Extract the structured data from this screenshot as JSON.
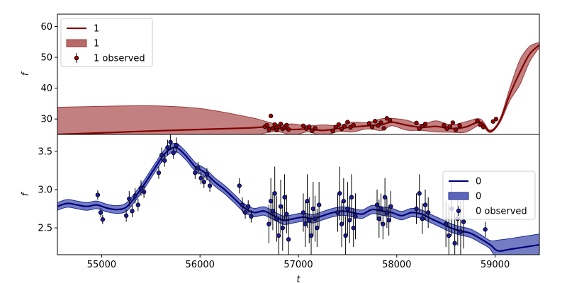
{
  "chart_data": [
    {
      "type": "line",
      "panel": "top",
      "xlabel": "",
      "ylabel": "f",
      "xlim": [
        54550,
        59450
      ],
      "ylim": [
        25,
        64
      ],
      "yticks": [
        30,
        40,
        50,
        60
      ],
      "grid": false,
      "legend_position": "top-left",
      "colors": {
        "line": "#800000",
        "band": "#b86a6a",
        "point": "#a00000"
      },
      "legend": [
        {
          "kind": "line",
          "label": "1"
        },
        {
          "kind": "band",
          "label": "1"
        },
        {
          "kind": "errorbar",
          "label": "1 observed"
        }
      ],
      "series": [
        {
          "name": "1",
          "kind": "mean",
          "x": [
            54550,
            55000,
            55500,
            56000,
            56500,
            56650,
            56800,
            56950,
            57100,
            57250,
            57400,
            57550,
            57700,
            57850,
            57950,
            58100,
            58250,
            58400,
            58550,
            58700,
            58850,
            58950,
            59050,
            59150,
            59250,
            59350,
            59450
          ],
          "y": [
            25.0,
            25.5,
            26.1,
            26.6,
            27.1,
            27.4,
            27.0,
            26.6,
            26.8,
            26.3,
            26.9,
            27.4,
            27.8,
            28.2,
            29.0,
            28.0,
            27.3,
            27.6,
            26.9,
            27.4,
            29.0,
            26.0,
            29.5,
            38.0,
            45.0,
            51.0,
            54.0
          ],
          "band_halfwidth": [
            8.8,
            8.6,
            8.2,
            6.8,
            3.5,
            2.0,
            1.2,
            1.8,
            1.0,
            1.8,
            1.0,
            1.6,
            1.0,
            1.9,
            1.2,
            1.6,
            1.0,
            1.8,
            1.2,
            1.7,
            1.0,
            0.4,
            0.6,
            2.0,
            4.0,
            2.5,
            0.8
          ]
        },
        {
          "name": "1 observed",
          "kind": "observed",
          "x": [
            56660,
            56680,
            56700,
            56720,
            56740,
            56760,
            56780,
            56800,
            56820,
            56840,
            56860,
            56880,
            56900,
            57050,
            57080,
            57110,
            57140,
            57170,
            57350,
            57380,
            57410,
            57440,
            57470,
            57500,
            57530,
            57560,
            57720,
            57750,
            57780,
            57810,
            57840,
            57870,
            57900,
            57930,
            58200,
            58230,
            58260,
            58290,
            58480,
            58510,
            58540,
            58570,
            58600,
            58640,
            58820,
            58850,
            58880,
            58980,
            59010
          ],
          "y": [
            27.5,
            28.0,
            26.5,
            31.0,
            27.0,
            28.2,
            26.4,
            27.6,
            28.4,
            26.8,
            27.3,
            28.0,
            26.6,
            27.8,
            26.9,
            27.5,
            26.2,
            27.0,
            26.1,
            27.4,
            28.2,
            26.8,
            27.6,
            29.0,
            27.3,
            28.0,
            28.6,
            27.4,
            29.3,
            27.9,
            28.8,
            27.0,
            30.2,
            29.6,
            28.7,
            26.9,
            27.7,
            28.4,
            28.0,
            26.9,
            27.6,
            28.8,
            26.5,
            27.9,
            29.4,
            28.1,
            27.4,
            29.2,
            30.0
          ]
        }
      ]
    },
    {
      "type": "line",
      "panel": "bottom",
      "xlabel": "t",
      "ylabel": "f",
      "xlim": [
        54550,
        59450
      ],
      "ylim": [
        2.15,
        3.72
      ],
      "xticks": [
        55000,
        56000,
        57000,
        58000,
        59000
      ],
      "yticks": [
        2.5,
        3.0,
        3.5
      ],
      "grid": false,
      "legend_position": "center-right",
      "colors": {
        "line": "#00007a",
        "band": "#5c66b8",
        "point": "#1a1aa0"
      },
      "legend": [
        {
          "kind": "line",
          "label": "0"
        },
        {
          "kind": "band",
          "label": "0"
        },
        {
          "kind": "errorbar",
          "label": "0 observed"
        }
      ],
      "series": [
        {
          "name": "0",
          "kind": "mean",
          "x": [
            54550,
            54650,
            54750,
            54850,
            54950,
            55050,
            55150,
            55250,
            55350,
            55450,
            55550,
            55650,
            55750,
            55850,
            55950,
            56050,
            56150,
            56250,
            56350,
            56450,
            56550,
            56650,
            56750,
            56850,
            56950,
            57050,
            57150,
            57250,
            57350,
            57450,
            57550,
            57650,
            57750,
            57850,
            57950,
            58050,
            58150,
            58250,
            58350,
            58450,
            58550,
            58650,
            58750,
            58850,
            58950,
            59030,
            59150,
            59300,
            59450
          ],
          "y": [
            2.78,
            2.82,
            2.8,
            2.78,
            2.8,
            2.76,
            2.74,
            2.77,
            2.92,
            3.1,
            3.3,
            3.48,
            3.55,
            3.45,
            3.3,
            3.22,
            3.1,
            3.0,
            2.88,
            2.76,
            2.7,
            2.72,
            2.66,
            2.6,
            2.62,
            2.64,
            2.62,
            2.66,
            2.7,
            2.72,
            2.7,
            2.68,
            2.74,
            2.72,
            2.7,
            2.66,
            2.7,
            2.68,
            2.62,
            2.56,
            2.5,
            2.46,
            2.43,
            2.36,
            2.28,
            2.2,
            2.22,
            2.25,
            2.28
          ]
        },
        {
          "name": "0 observed",
          "kind": "observed",
          "x": [
            54960,
            54990,
            55010,
            55250,
            55280,
            55310,
            55340,
            55370,
            55400,
            55430,
            55580,
            55610,
            55640,
            55670,
            55700,
            55730,
            55760,
            55950,
            55980,
            56010,
            56040,
            56070,
            56100,
            56400,
            56430,
            56460,
            56490,
            56520,
            56700,
            56720,
            56740,
            56760,
            56780,
            56800,
            56820,
            56840,
            56860,
            56880,
            56900,
            57050,
            57070,
            57090,
            57110,
            57130,
            57150,
            57170,
            57190,
            57210,
            57400,
            57420,
            57440,
            57460,
            57480,
            57500,
            57520,
            57540,
            57560,
            57580,
            57800,
            57820,
            57840,
            57860,
            57880,
            57900,
            57920,
            57940,
            58200,
            58230,
            58260,
            58290,
            58320,
            58500,
            58530,
            58560,
            58590,
            58620,
            58650,
            58680,
            58900
          ],
          "y": [
            2.93,
            2.7,
            2.61,
            2.66,
            2.88,
            2.72,
            2.92,
            2.8,
            3.02,
            2.97,
            3.22,
            3.45,
            3.38,
            3.55,
            3.62,
            3.48,
            3.58,
            3.22,
            3.28,
            3.15,
            3.1,
            3.2,
            3.05,
            3.05,
            2.8,
            2.7,
            2.78,
            2.65,
            2.55,
            2.85,
            2.72,
            2.95,
            2.62,
            2.4,
            2.78,
            2.5,
            2.9,
            2.68,
            2.35,
            2.7,
            2.55,
            2.85,
            2.6,
            2.4,
            2.75,
            2.62,
            2.5,
            2.8,
            2.7,
            2.95,
            2.55,
            2.85,
            2.4,
            2.75,
            2.6,
            2.9,
            2.5,
            2.65,
            2.8,
            2.62,
            2.75,
            2.55,
            2.9,
            2.7,
            2.6,
            2.78,
            2.75,
            2.95,
            2.62,
            2.8,
            2.7,
            2.55,
            2.4,
            2.75,
            2.3,
            2.62,
            2.45,
            2.58,
            2.48
          ],
          "err": [
            0.06,
            0.06,
            0.06,
            0.08,
            0.1,
            0.08,
            0.1,
            0.08,
            0.1,
            0.08,
            0.08,
            0.1,
            0.08,
            0.1,
            0.1,
            0.08,
            0.1,
            0.08,
            0.08,
            0.08,
            0.08,
            0.08,
            0.08,
            0.1,
            0.1,
            0.08,
            0.08,
            0.08,
            0.25,
            0.3,
            0.25,
            0.35,
            0.3,
            0.25,
            0.35,
            0.3,
            0.3,
            0.25,
            0.3,
            0.25,
            0.3,
            0.35,
            0.3,
            0.25,
            0.35,
            0.3,
            0.25,
            0.3,
            0.25,
            0.35,
            0.3,
            0.3,
            0.25,
            0.35,
            0.3,
            0.3,
            0.25,
            0.3,
            0.2,
            0.25,
            0.2,
            0.2,
            0.25,
            0.2,
            0.2,
            0.2,
            0.2,
            0.25,
            0.2,
            0.2,
            0.2,
            0.3,
            0.4,
            0.35,
            0.4,
            0.35,
            0.4,
            0.35,
            0.1
          ]
        }
      ]
    }
  ]
}
